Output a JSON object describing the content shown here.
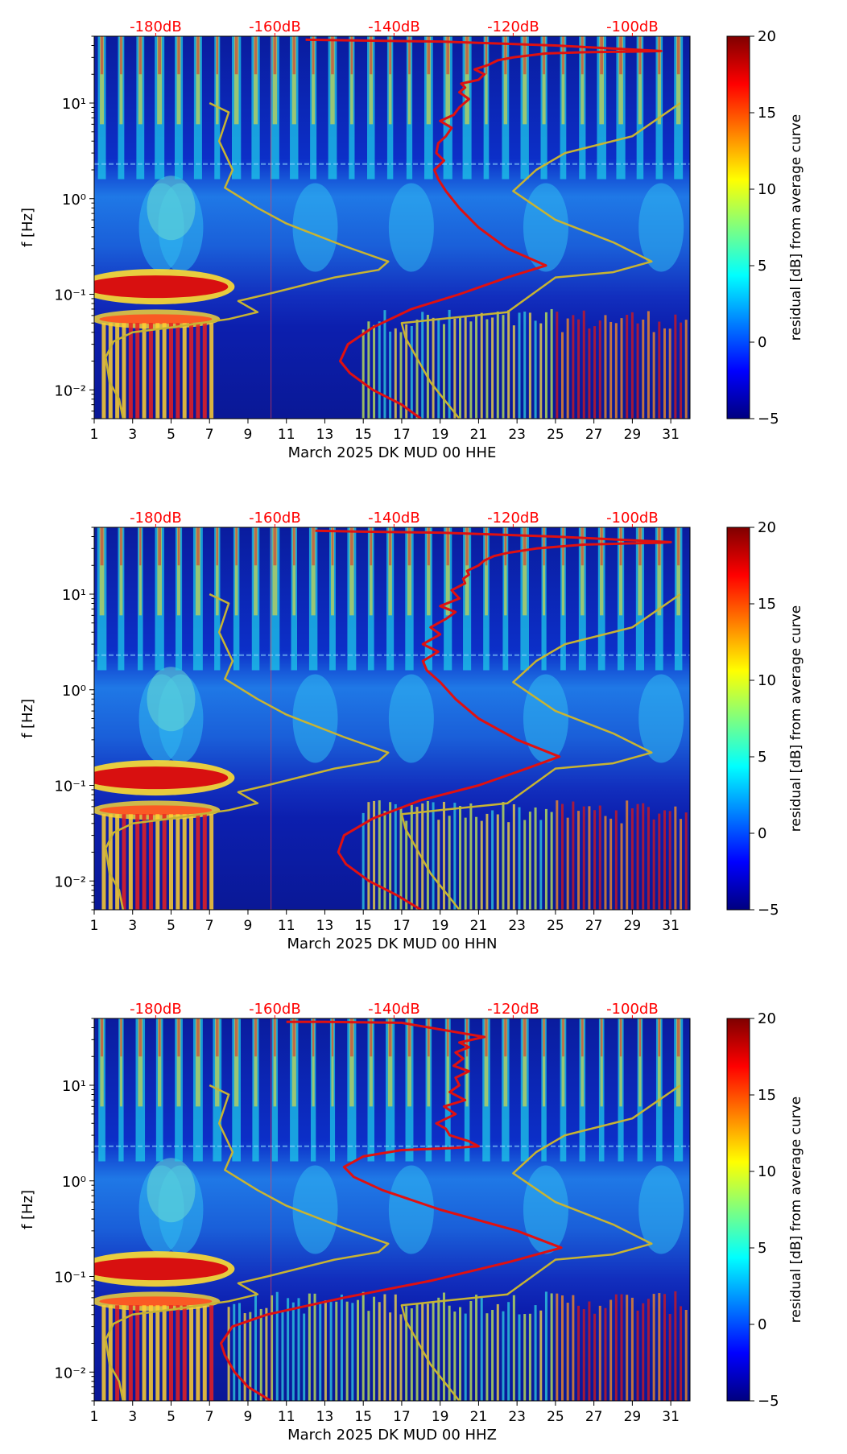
{
  "colorbar": {
    "label": "residual [dB] from average curve",
    "ticks": [
      20,
      15,
      10,
      5,
      0,
      -5
    ],
    "tick_labels": [
      "20",
      "15",
      "10",
      "5",
      "0",
      "−5"
    ],
    "range": [
      -5,
      20
    ],
    "colormap": "jet",
    "colormap_stops": [
      "#00007f",
      "#0000ff",
      "#007fff",
      "#00ffff",
      "#7fff7f",
      "#ffff00",
      "#ff7f00",
      "#ff0000",
      "#7f0000"
    ]
  },
  "colors": {
    "noise_model": "#c8b432",
    "median_curve": "#e01010",
    "top_axis_labels": "#ff0000"
  },
  "chart_data": [
    {
      "type": "heatmap",
      "xlabel": "March 2025 DK MUD 00 HHE",
      "ylabel": "f [Hz]",
      "xlim": [
        1,
        32
      ],
      "ylim": [
        0.005,
        50
      ],
      "yscale": "log",
      "x_ticks": [
        1,
        3,
        5,
        7,
        9,
        11,
        13,
        15,
        17,
        19,
        21,
        23,
        25,
        27,
        29,
        31
      ],
      "x_tick_labels": [
        "1",
        "3",
        "5",
        "7",
        "9",
        "11",
        "13",
        "15",
        "17",
        "19",
        "21",
        "23",
        "25",
        "27",
        "29",
        "31"
      ],
      "y_ticks": [
        0.01,
        0.1,
        1,
        10
      ],
      "y_tick_labels": [
        "10⁻²",
        "10⁻¹",
        "10⁰",
        "10¹"
      ],
      "top_ticks": [
        4.2,
        10.4,
        16.6,
        22.8,
        29.0
      ],
      "top_tick_labels": [
        "-180dB",
        "-160dB",
        "-140dB",
        "-120dB",
        "-100dB"
      ],
      "series": [
        {
          "role": "noise-model-low",
          "x": [
            2.5,
            2.3,
            1.8,
            1.6,
            2.0,
            3.0,
            5.0,
            8.0,
            9.5,
            8.5,
            10.0,
            13.5,
            15.8,
            16.3,
            14.0,
            11.0,
            9.5,
            7.8,
            8.2,
            7.5,
            8.0,
            7.0
          ],
          "y": [
            0.005,
            0.008,
            0.012,
            0.022,
            0.032,
            0.04,
            0.045,
            0.055,
            0.065,
            0.085,
            0.1,
            0.15,
            0.18,
            0.22,
            0.32,
            0.55,
            0.8,
            1.3,
            2.0,
            4.0,
            8.0,
            10.0
          ]
        },
        {
          "role": "noise-model-high",
          "x": [
            20.0,
            18.5,
            17.2,
            17.0,
            19.0,
            22.5,
            25.0,
            28.0,
            30.0,
            28.0,
            25.0,
            22.8,
            24.0,
            25.5,
            29.0,
            31.5
          ],
          "y": [
            0.005,
            0.012,
            0.035,
            0.05,
            0.055,
            0.065,
            0.15,
            0.17,
            0.22,
            0.35,
            0.6,
            1.2,
            2.0,
            3.0,
            4.5,
            10.0
          ]
        },
        {
          "role": "median",
          "x": [
            18.0,
            17.0,
            15.5,
            14.3,
            13.8,
            14.2,
            15.5,
            17.5,
            20.0,
            22.5,
            24.5,
            22.5,
            21.0,
            20.0,
            19.3,
            18.9,
            18.7,
            19.2,
            18.8,
            18.9,
            19.3,
            19.6,
            19.0,
            19.7,
            20.0,
            20.5,
            20.0,
            20.3,
            20.1,
            21.0,
            21.3,
            20.8,
            21.5,
            22.0,
            22.8,
            24.5,
            26.5,
            29.0,
            30.5,
            25.0,
            19.0,
            15.0,
            12.0
          ],
          "y": [
            0.005,
            0.007,
            0.01,
            0.015,
            0.02,
            0.03,
            0.045,
            0.07,
            0.1,
            0.15,
            0.2,
            0.3,
            0.5,
            0.8,
            1.2,
            1.6,
            2.0,
            2.5,
            3.0,
            3.8,
            4.5,
            5.5,
            6.5,
            7.5,
            9.0,
            11.0,
            13.0,
            14.5,
            16.0,
            17.5,
            20.0,
            22.5,
            25.0,
            28.0,
            30.0,
            33.0,
            34.0,
            34.5,
            35.0,
            40.0,
            44.0,
            45.0,
            46.0
          ]
        }
      ]
    },
    {
      "type": "heatmap",
      "xlabel": "March 2025 DK MUD 00 HHN",
      "ylabel": "f [Hz]",
      "xlim": [
        1,
        32
      ],
      "ylim": [
        0.005,
        50
      ],
      "yscale": "log",
      "x_ticks": [
        1,
        3,
        5,
        7,
        9,
        11,
        13,
        15,
        17,
        19,
        21,
        23,
        25,
        27,
        29,
        31
      ],
      "x_tick_labels": [
        "1",
        "3",
        "5",
        "7",
        "9",
        "11",
        "13",
        "15",
        "17",
        "19",
        "21",
        "23",
        "25",
        "27",
        "29",
        "31"
      ],
      "y_ticks": [
        0.01,
        0.1,
        1,
        10
      ],
      "y_tick_labels": [
        "10⁻²",
        "10⁻¹",
        "10⁰",
        "10¹"
      ],
      "top_ticks": [
        4.2,
        10.4,
        16.6,
        22.8,
        29.0
      ],
      "top_tick_labels": [
        "-180dB",
        "-160dB",
        "-140dB",
        "-120dB",
        "-100dB"
      ],
      "series": [
        {
          "role": "noise-model-low",
          "x": [
            2.5,
            2.3,
            1.8,
            1.6,
            2.0,
            3.0,
            5.0,
            8.0,
            9.5,
            8.5,
            10.0,
            13.5,
            15.8,
            16.3,
            14.0,
            11.0,
            9.5,
            7.8,
            8.2,
            7.5,
            8.0,
            7.0
          ],
          "y": [
            0.005,
            0.008,
            0.012,
            0.022,
            0.032,
            0.04,
            0.045,
            0.055,
            0.065,
            0.085,
            0.1,
            0.15,
            0.18,
            0.22,
            0.32,
            0.55,
            0.8,
            1.3,
            2.0,
            4.0,
            8.0,
            10.0
          ]
        },
        {
          "role": "noise-model-high",
          "x": [
            20.0,
            18.5,
            17.2,
            17.0,
            19.0,
            22.5,
            25.0,
            28.0,
            30.0,
            28.0,
            25.0,
            22.8,
            24.0,
            25.5,
            29.0,
            31.5
          ],
          "y": [
            0.005,
            0.012,
            0.035,
            0.05,
            0.055,
            0.065,
            0.15,
            0.17,
            0.22,
            0.35,
            0.6,
            1.2,
            2.0,
            3.0,
            4.5,
            10.0
          ]
        },
        {
          "role": "median",
          "x": [
            18.0,
            16.8,
            15.3,
            14.1,
            13.7,
            14.0,
            15.5,
            18.0,
            21.0,
            23.5,
            25.2,
            23.0,
            21.0,
            19.8,
            19.0,
            18.3,
            18.1,
            18.9,
            18.1,
            19.0,
            18.5,
            19.3,
            19.8,
            19.0,
            20.0,
            19.6,
            20.3,
            20.2,
            20.5,
            20.4,
            21.0,
            21.3,
            21.8,
            22.5,
            24.0,
            26.5,
            29.0,
            30.5,
            31.0,
            25.0,
            19.0,
            15.0,
            12.5
          ],
          "y": [
            0.005,
            0.007,
            0.01,
            0.015,
            0.02,
            0.03,
            0.045,
            0.07,
            0.1,
            0.15,
            0.2,
            0.3,
            0.5,
            0.8,
            1.2,
            1.6,
            2.0,
            2.5,
            3.0,
            3.8,
            4.5,
            5.5,
            6.5,
            7.5,
            9.0,
            11.0,
            13.0,
            14.5,
            16.0,
            17.5,
            20.0,
            22.5,
            25.0,
            27.0,
            30.0,
            33.0,
            34.0,
            34.5,
            35.0,
            40.0,
            44.0,
            45.0,
            46.0
          ]
        }
      ]
    },
    {
      "type": "heatmap",
      "xlabel": "March 2025 DK MUD 00 HHZ",
      "ylabel": "f [Hz]",
      "xlim": [
        1,
        32
      ],
      "ylim": [
        0.005,
        50
      ],
      "yscale": "log",
      "x_ticks": [
        1,
        3,
        5,
        7,
        9,
        11,
        13,
        15,
        17,
        19,
        21,
        23,
        25,
        27,
        29,
        31
      ],
      "x_tick_labels": [
        "1",
        "3",
        "5",
        "7",
        "9",
        "11",
        "13",
        "15",
        "17",
        "19",
        "21",
        "23",
        "25",
        "27",
        "29",
        "31"
      ],
      "y_ticks": [
        0.01,
        0.1,
        1,
        10
      ],
      "y_tick_labels": [
        "10⁻²",
        "10⁻¹",
        "10⁰",
        "10¹"
      ],
      "top_ticks": [
        4.2,
        10.4,
        16.6,
        22.8,
        29.0
      ],
      "top_tick_labels": [
        "-180dB",
        "-160dB",
        "-140dB",
        "-120dB",
        "-100dB"
      ],
      "series": [
        {
          "role": "noise-model-low",
          "x": [
            2.5,
            2.3,
            1.8,
            1.6,
            2.0,
            3.0,
            5.0,
            8.0,
            9.5,
            8.5,
            10.0,
            13.5,
            15.8,
            16.3,
            14.0,
            11.0,
            9.5,
            7.8,
            8.2,
            7.5,
            8.0,
            7.0
          ],
          "y": [
            0.005,
            0.008,
            0.012,
            0.022,
            0.032,
            0.04,
            0.045,
            0.055,
            0.065,
            0.085,
            0.1,
            0.15,
            0.18,
            0.22,
            0.32,
            0.55,
            0.8,
            1.3,
            2.0,
            4.0,
            8.0,
            10.0
          ]
        },
        {
          "role": "noise-model-high",
          "x": [
            20.0,
            18.5,
            17.2,
            17.0,
            19.0,
            22.5,
            25.0,
            28.0,
            30.0,
            28.0,
            25.0,
            22.8,
            24.0,
            25.5,
            29.0,
            31.5
          ],
          "y": [
            0.005,
            0.012,
            0.035,
            0.05,
            0.055,
            0.065,
            0.15,
            0.17,
            0.22,
            0.35,
            0.6,
            1.2,
            2.0,
            3.0,
            4.5,
            10.0
          ]
        },
        {
          "role": "median",
          "x": [
            10.2,
            9.0,
            8.3,
            7.8,
            7.6,
            8.2,
            10.0,
            14.0,
            18.5,
            22.5,
            25.3,
            23.0,
            19.0,
            16.0,
            14.5,
            14.0,
            15.0,
            17.0,
            19.5,
            21.0,
            20.5,
            19.5,
            19.3,
            18.8,
            19.8,
            19.2,
            20.3,
            19.5,
            20.0,
            19.8,
            20.5,
            19.7,
            20.2,
            19.8,
            20.5,
            20.0,
            21.3,
            17.0,
            13.0,
            11.0
          ],
          "y": [
            0.005,
            0.007,
            0.01,
            0.015,
            0.02,
            0.03,
            0.04,
            0.06,
            0.09,
            0.14,
            0.2,
            0.3,
            0.5,
            0.8,
            1.1,
            1.4,
            1.8,
            2.1,
            2.2,
            2.3,
            2.6,
            3.0,
            3.5,
            4.0,
            5.0,
            6.0,
            7.0,
            8.5,
            10.0,
            12.0,
            14.0,
            16.0,
            19.0,
            22.0,
            25.0,
            28.0,
            32.0,
            45.0,
            46.0,
            46.0
          ]
        }
      ]
    }
  ]
}
